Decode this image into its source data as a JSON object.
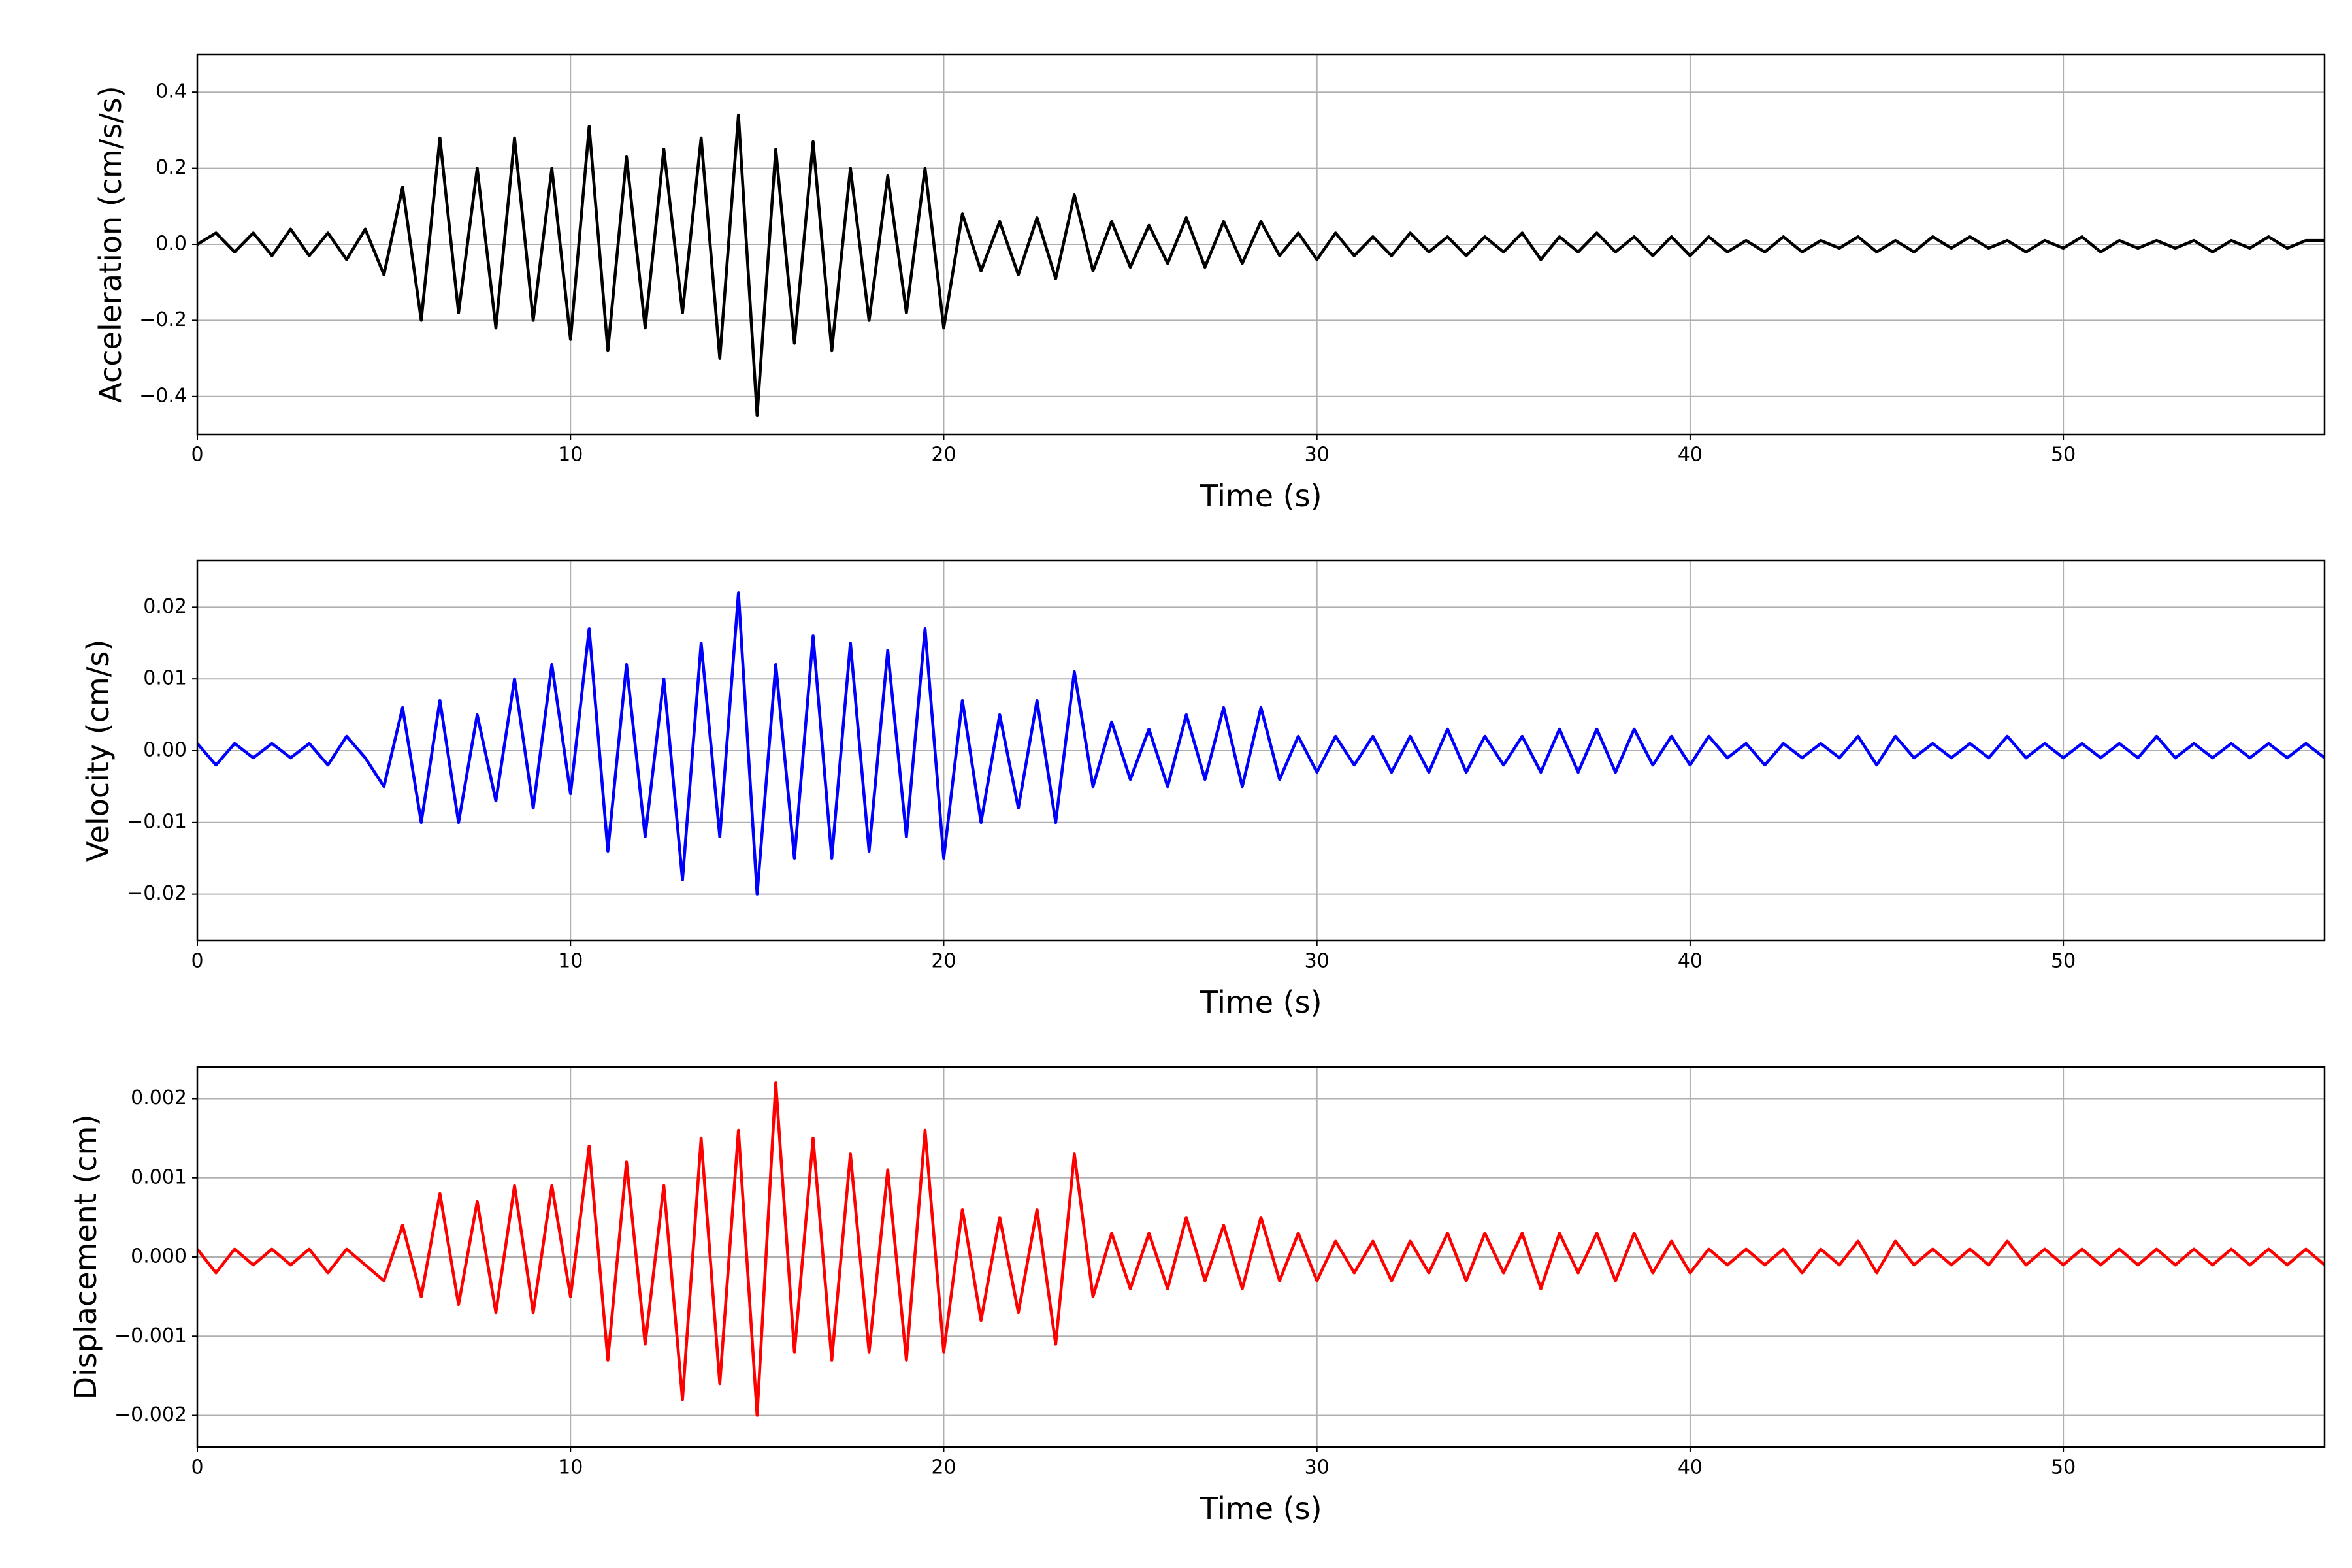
{
  "chart_data": [
    {
      "type": "line",
      "xlabel": "Time (s)",
      "ylabel": "Acceleration (cm/s/s)",
      "color": "#000000",
      "grid": true,
      "xlim": [
        0,
        57
      ],
      "xticks": [
        0,
        10,
        20,
        30,
        40,
        50
      ],
      "ylim": [
        -0.5,
        0.5
      ],
      "yticks": [
        {
          "value": -0.4,
          "label": "−0.4"
        },
        {
          "value": -0.2,
          "label": "−0.2"
        },
        {
          "value": 0,
          "label": "0.0"
        },
        0.2,
        0.4
      ],
      "x": [
        0,
        0.5,
        1,
        1.5,
        2,
        2.5,
        3,
        3.5,
        4,
        4.5,
        5,
        5.5,
        6,
        6.5,
        7,
        7.5,
        8,
        8.5,
        9,
        9.5,
        10,
        10.5,
        11,
        11.5,
        12,
        12.5,
        13,
        13.5,
        14,
        14.5,
        15,
        15.5,
        16,
        16.5,
        17,
        17.5,
        18,
        18.5,
        19,
        19.5,
        20,
        20.5,
        21,
        21.5,
        22,
        22.5,
        23,
        23.5,
        24,
        24.5,
        25,
        25.5,
        26,
        26.5,
        27,
        27.5,
        28,
        28.5,
        29,
        29.5,
        30,
        30.5,
        31,
        31.5,
        32,
        32.5,
        33,
        33.5,
        34,
        34.5,
        35,
        35.5,
        36,
        36.5,
        37,
        37.5,
        38,
        38.5,
        39,
        39.5,
        40,
        40.5,
        41,
        41.5,
        42,
        42.5,
        43,
        43.5,
        44,
        44.5,
        45,
        45.5,
        46,
        46.5,
        47,
        47.5,
        48,
        48.5,
        49,
        49.5,
        50,
        50.5,
        51,
        51.5,
        52,
        52.5,
        53,
        53.5,
        54,
        54.5,
        55,
        55.5,
        56,
        56.5,
        57
      ],
      "values": [
        0,
        0.03,
        -0.02,
        0.03,
        -0.03,
        0.04,
        -0.03,
        0.03,
        -0.04,
        0.04,
        -0.08,
        0.15,
        -0.2,
        0.28,
        -0.18,
        0.2,
        -0.22,
        0.28,
        -0.2,
        0.2,
        -0.25,
        0.31,
        -0.28,
        0.23,
        -0.22,
        0.25,
        -0.18,
        0.28,
        -0.3,
        0.34,
        -0.45,
        0.25,
        -0.26,
        0.27,
        -0.28,
        0.2,
        -0.2,
        0.18,
        -0.18,
        0.2,
        -0.22,
        0.08,
        -0.07,
        0.06,
        -0.08,
        0.07,
        -0.09,
        0.13,
        -0.07,
        0.06,
        -0.06,
        0.05,
        -0.05,
        0.07,
        -0.06,
        0.06,
        -0.05,
        0.06,
        -0.03,
        0.03,
        -0.04,
        0.03,
        -0.03,
        0.02,
        -0.03,
        0.03,
        -0.02,
        0.02,
        -0.03,
        0.02,
        -0.02,
        0.03,
        -0.04,
        0.02,
        -0.02,
        0.03,
        -0.02,
        0.02,
        -0.03,
        0.02,
        -0.03,
        0.02,
        -0.02,
        0.01,
        -0.02,
        0.02,
        -0.02,
        0.01,
        -0.01,
        0.02,
        -0.02,
        0.01,
        -0.02,
        0.02,
        -0.01,
        0.02,
        -0.01,
        0.01,
        -0.02,
        0.01,
        -0.01,
        0.02,
        -0.02,
        0.01,
        -0.01,
        0.01,
        -0.01,
        0.01,
        -0.02,
        0.01,
        -0.01,
        0.02,
        -0.01,
        0.01,
        0.01
      ]
    },
    {
      "type": "line",
      "xlabel": "Time (s)",
      "ylabel": "Velocity (cm/s)",
      "color": "#0000ff",
      "grid": true,
      "xlim": [
        0,
        57
      ],
      "xticks": [
        0,
        10,
        20,
        30,
        40,
        50
      ],
      "ylim": [
        -0.0265,
        0.0265
      ],
      "yticks": [
        {
          "value": -0.02,
          "label": "−0.02"
        },
        {
          "value": -0.01,
          "label": "−0.01"
        },
        {
          "value": 0,
          "label": "0.00"
        },
        0.01,
        0.02
      ],
      "x": [
        0,
        0.5,
        1,
        1.5,
        2,
        2.5,
        3,
        3.5,
        4,
        4.5,
        5,
        5.5,
        6,
        6.5,
        7,
        7.5,
        8,
        8.5,
        9,
        9.5,
        10,
        10.5,
        11,
        11.5,
        12,
        12.5,
        13,
        13.5,
        14,
        14.5,
        15,
        15.5,
        16,
        16.5,
        17,
        17.5,
        18,
        18.5,
        19,
        19.5,
        20,
        20.5,
        21,
        21.5,
        22,
        22.5,
        23,
        23.5,
        24,
        24.5,
        25,
        25.5,
        26,
        26.5,
        27,
        27.5,
        28,
        28.5,
        29,
        29.5,
        30,
        30.5,
        31,
        31.5,
        32,
        32.5,
        33,
        33.5,
        34,
        34.5,
        35,
        35.5,
        36,
        36.5,
        37,
        37.5,
        38,
        38.5,
        39,
        39.5,
        40,
        40.5,
        41,
        41.5,
        42,
        42.5,
        43,
        43.5,
        44,
        44.5,
        45,
        45.5,
        46,
        46.5,
        47,
        47.5,
        48,
        48.5,
        49,
        49.5,
        50,
        50.5,
        51,
        51.5,
        52,
        52.5,
        53,
        53.5,
        54,
        54.5,
        55,
        55.5,
        56,
        56.5,
        57
      ],
      "values": [
        0.001,
        -0.002,
        0.001,
        -0.001,
        0.001,
        -0.001,
        0.001,
        -0.002,
        0.002,
        -0.001,
        -0.005,
        0.006,
        -0.01,
        0.007,
        -0.01,
        0.005,
        -0.007,
        0.01,
        -0.008,
        0.012,
        -0.006,
        0.017,
        -0.014,
        0.012,
        -0.012,
        0.01,
        -0.018,
        0.015,
        -0.012,
        0.022,
        -0.02,
        0.012,
        -0.015,
        0.016,
        -0.015,
        0.015,
        -0.014,
        0.014,
        -0.012,
        0.017,
        -0.015,
        0.007,
        -0.01,
        0.005,
        -0.008,
        0.007,
        -0.01,
        0.011,
        -0.005,
        0.004,
        -0.004,
        0.003,
        -0.005,
        0.005,
        -0.004,
        0.006,
        -0.005,
        0.006,
        -0.004,
        0.002,
        -0.003,
        0.002,
        -0.002,
        0.002,
        -0.003,
        0.002,
        -0.003,
        0.003,
        -0.003,
        0.002,
        -0.002,
        0.002,
        -0.003,
        0.003,
        -0.003,
        0.003,
        -0.003,
        0.003,
        -0.002,
        0.002,
        -0.002,
        0.002,
        -0.001,
        0.001,
        -0.002,
        0.001,
        -0.001,
        0.001,
        -0.001,
        0.002,
        -0.002,
        0.002,
        -0.001,
        0.001,
        -0.001,
        0.001,
        -0.001,
        0.002,
        -0.001,
        0.001,
        -0.001,
        0.001,
        -0.001,
        0.001,
        -0.001,
        0.002,
        -0.001,
        0.001,
        -0.001,
        0.001,
        -0.001,
        0.001,
        -0.001,
        0.001,
        -0.001
      ]
    },
    {
      "type": "line",
      "xlabel": "Time (s)",
      "ylabel": "Displacement (cm)",
      "color": "#ff0000",
      "grid": true,
      "xlim": [
        0,
        57
      ],
      "xticks": [
        0,
        10,
        20,
        30,
        40,
        50
      ],
      "ylim": [
        -0.0024,
        0.0024
      ],
      "yticks": [
        {
          "value": -0.002,
          "label": "−0.002"
        },
        {
          "value": -0.001,
          "label": "−0.001"
        },
        {
          "value": 0,
          "label": "0.000"
        },
        0.001,
        0.002
      ],
      "x": [
        0,
        0.5,
        1,
        1.5,
        2,
        2.5,
        3,
        3.5,
        4,
        4.5,
        5,
        5.5,
        6,
        6.5,
        7,
        7.5,
        8,
        8.5,
        9,
        9.5,
        10,
        10.5,
        11,
        11.5,
        12,
        12.5,
        13,
        13.5,
        14,
        14.5,
        15,
        15.5,
        16,
        16.5,
        17,
        17.5,
        18,
        18.5,
        19,
        19.5,
        20,
        20.5,
        21,
        21.5,
        22,
        22.5,
        23,
        23.5,
        24,
        24.5,
        25,
        25.5,
        26,
        26.5,
        27,
        27.5,
        28,
        28.5,
        29,
        29.5,
        30,
        30.5,
        31,
        31.5,
        32,
        32.5,
        33,
        33.5,
        34,
        34.5,
        35,
        35.5,
        36,
        36.5,
        37,
        37.5,
        38,
        38.5,
        39,
        39.5,
        40,
        40.5,
        41,
        41.5,
        42,
        42.5,
        43,
        43.5,
        44,
        44.5,
        45,
        45.5,
        46,
        46.5,
        47,
        47.5,
        48,
        48.5,
        49,
        49.5,
        50,
        50.5,
        51,
        51.5,
        52,
        52.5,
        53,
        53.5,
        54,
        54.5,
        55,
        55.5,
        56,
        56.5,
        57
      ],
      "values": [
        0.0001,
        -0.0002,
        0.0001,
        -0.0001,
        0.0001,
        -0.0001,
        0.0001,
        -0.0002,
        0.0001,
        -0.0001,
        -0.0003,
        0.0004,
        -0.0005,
        0.0008,
        -0.0006,
        0.0007,
        -0.0007,
        0.0009,
        -0.0007,
        0.0009,
        -0.0005,
        0.0014,
        -0.0013,
        0.0012,
        -0.0011,
        0.0009,
        -0.0018,
        0.0015,
        -0.0016,
        0.0016,
        -0.002,
        0.0022,
        -0.0012,
        0.0015,
        -0.0013,
        0.0013,
        -0.0012,
        0.0011,
        -0.0013,
        0.0016,
        -0.0012,
        0.0006,
        -0.0008,
        0.0005,
        -0.0007,
        0.0006,
        -0.0011,
        0.0013,
        -0.0005,
        0.0003,
        -0.0004,
        0.0003,
        -0.0004,
        0.0005,
        -0.0003,
        0.0004,
        -0.0004,
        0.0005,
        -0.0003,
        0.0003,
        -0.0003,
        0.0002,
        -0.0002,
        0.0002,
        -0.0003,
        0.0002,
        -0.0002,
        0.0003,
        -0.0003,
        0.0003,
        -0.0002,
        0.0003,
        -0.0004,
        0.0003,
        -0.0002,
        0.0003,
        -0.0003,
        0.0003,
        -0.0002,
        0.0002,
        -0.0002,
        0.0001,
        -0.0001,
        0.0001,
        -0.0001,
        0.0001,
        -0.0002,
        0.0001,
        -0.0001,
        0.0002,
        -0.0002,
        0.0002,
        -0.0001,
        0.0001,
        -0.0001,
        0.0001,
        -0.0001,
        0.0002,
        -0.0001,
        0.0001,
        -0.0001,
        0.0001,
        -0.0001,
        0.0001,
        -0.0001,
        0.0001,
        -0.0001,
        0.0001,
        -0.0001,
        0.0001,
        -0.0001,
        0.0001,
        -0.0001,
        0.0001,
        -0.0001
      ]
    }
  ]
}
